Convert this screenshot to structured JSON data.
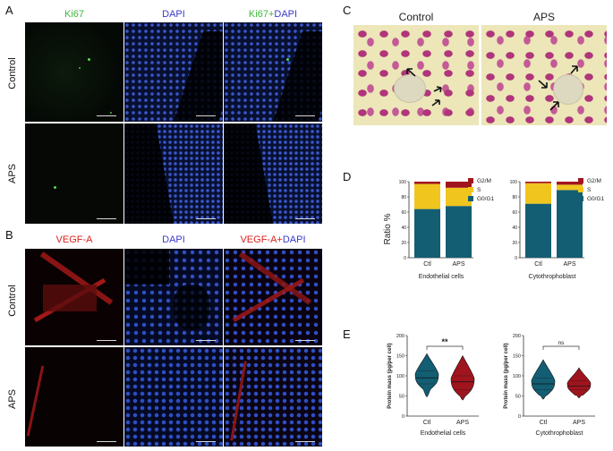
{
  "panels": {
    "A": {
      "label": "A",
      "col_titles": [
        "Ki67",
        "DAPI",
        "Ki67+DAPI"
      ],
      "row_labels": [
        "Control",
        "APS"
      ],
      "colors": {
        "ki67": "#3db83d",
        "dapi": "#3a3ad0"
      }
    },
    "B": {
      "label": "B",
      "col_titles": [
        "VEGF-A",
        "DAPI",
        "VEGF-A+DAPI"
      ],
      "row_labels": [
        "Control",
        "APS"
      ],
      "colors": {
        "vegf": "#e02020",
        "dapi": "#3a3ad0"
      }
    },
    "C": {
      "label": "C",
      "col_titles": [
        "Control",
        "APS"
      ]
    },
    "D": {
      "label": "D",
      "ylabel": "Ratio %",
      "legend": [
        "G2/M",
        "S",
        "G0/G1"
      ],
      "colors": {
        "g2m": "#a0141e",
        "s": "#f0c51e",
        "g0g1": "#135e73"
      }
    },
    "E": {
      "label": "E",
      "ylabel": "Protein mass (pg/per cell)",
      "colors": {
        "ctl": "#135e73",
        "aps": "#a0141e"
      }
    }
  },
  "chart_data": [
    {
      "type": "bar",
      "stacked": true,
      "xlabel": "Endothelial cells",
      "ylabel": "Ratio %",
      "categories": [
        "Ctl",
        "APS"
      ],
      "yticks": [
        0,
        20,
        40,
        60,
        80,
        100
      ],
      "ylim": [
        0,
        100
      ],
      "series": [
        {
          "name": "G0/G1",
          "values": [
            64,
            68
          ]
        },
        {
          "name": "S",
          "values": [
            33,
            24
          ]
        },
        {
          "name": "G2/M",
          "values": [
            3,
            8
          ]
        }
      ]
    },
    {
      "type": "bar",
      "stacked": true,
      "xlabel": "Cytothrophoblast",
      "ylabel": "",
      "categories": [
        "Ctl",
        "APS"
      ],
      "yticks": [
        0,
        20,
        40,
        60,
        80,
        100
      ],
      "ylim": [
        0,
        100
      ],
      "series": [
        {
          "name": "G0/G1",
          "values": [
            71,
            89
          ]
        },
        {
          "name": "S",
          "values": [
            27,
            7
          ]
        },
        {
          "name": "G2/M",
          "values": [
            2,
            4
          ]
        }
      ]
    },
    {
      "type": "violin",
      "xlabel": "Endothelial cells",
      "ylabel": "Protein mass (pg/per cell)",
      "categories": [
        "Ctl",
        "APS"
      ],
      "yticks": [
        0,
        50,
        100,
        150,
        200
      ],
      "ylim": [
        0,
        200
      ],
      "significance": "**",
      "median": [
        95,
        85
      ],
      "min": [
        48,
        40
      ],
      "max": [
        155,
        150
      ],
      "q1": [
        80,
        65
      ],
      "q3": [
        112,
        100
      ]
    },
    {
      "type": "violin",
      "xlabel": "Cytothrophoblast",
      "ylabel": "Protein mass (pg/per cell)",
      "categories": [
        "Ctl",
        "APS"
      ],
      "yticks": [
        0,
        50,
        100,
        150,
        200
      ],
      "ylim": [
        0,
        200
      ],
      "significance": "ns",
      "median": [
        80,
        75
      ],
      "min": [
        42,
        45
      ],
      "max": [
        140,
        120
      ],
      "q1": [
        65,
        65
      ],
      "q3": [
        95,
        88
      ]
    }
  ]
}
